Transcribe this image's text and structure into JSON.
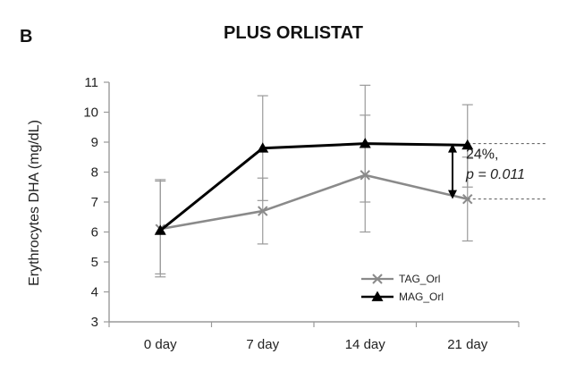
{
  "panel_label": "B",
  "chart_data": {
    "type": "line",
    "title": "PLUS ORLISTAT",
    "xlabel": "",
    "ylabel": "Erythrocytes  DHA (mg/dL)",
    "categories": [
      "0 day",
      "7 day",
      "14 day",
      "21 day"
    ],
    "ylim": [
      3,
      11
    ],
    "yticks": [
      3,
      4,
      5,
      6,
      7,
      8,
      9,
      10,
      11
    ],
    "grid": false,
    "legend_position": "bottom-right",
    "series": [
      {
        "name": "TAG_Orl",
        "marker": "x",
        "color": "#8a8a8a",
        "values": [
          6.1,
          6.7,
          7.9,
          7.1
        ],
        "error_upper": [
          7.7,
          7.8,
          9.9,
          8.5
        ],
        "error_lower": [
          4.6,
          5.6,
          6.0,
          5.7
        ]
      },
      {
        "name": "MAG_Orl",
        "marker": "triangle",
        "color": "#000000",
        "values": [
          6.05,
          8.8,
          8.95,
          8.9
        ],
        "error_upper": [
          7.75,
          10.55,
          10.9,
          10.25
        ],
        "error_lower": [
          4.5,
          7.05,
          7.0,
          7.5
        ]
      }
    ],
    "annotation": {
      "line1": "24%,",
      "line2": "p = 0.011",
      "from_value": 8.95,
      "to_value": 7.1
    },
    "colors": {
      "axis": "#9a9a9a",
      "error_bar": "#9a9a9a",
      "reference_line": "#555555"
    }
  }
}
